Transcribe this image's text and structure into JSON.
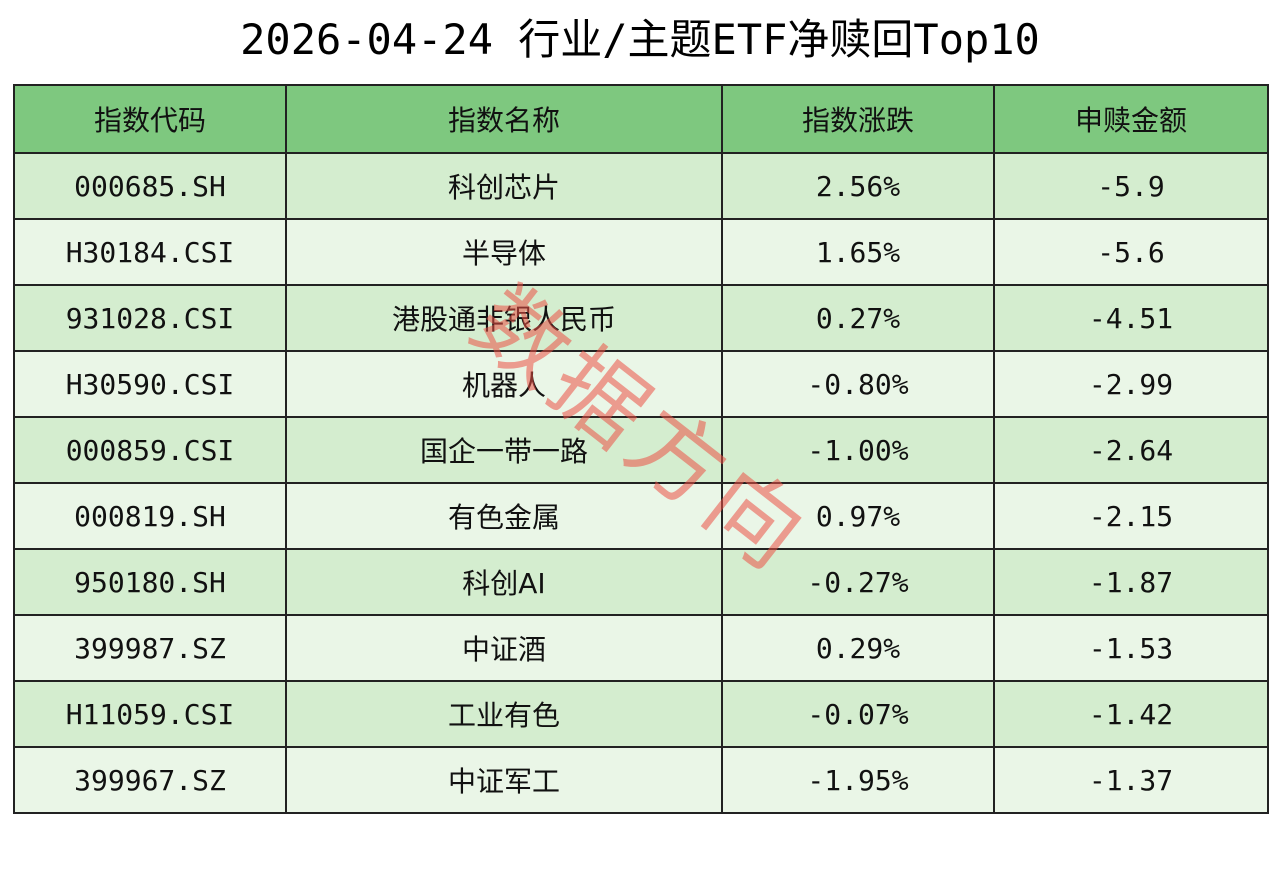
{
  "title": "2026-04-24 行业/主题ETF净赎回Top10",
  "table": {
    "headers": [
      "指数代码",
      "指数名称",
      "指数涨跌",
      "申赎金额"
    ],
    "rows": [
      {
        "code": "000685.SH",
        "name": "科创芯片",
        "change": "2.56%",
        "amount": "-5.9"
      },
      {
        "code": "H30184.CSI",
        "name": "半导体",
        "change": "1.65%",
        "amount": "-5.6"
      },
      {
        "code": "931028.CSI",
        "name": "港股通非银人民币",
        "change": "0.27%",
        "amount": "-4.51"
      },
      {
        "code": "H30590.CSI",
        "name": "机器人",
        "change": "-0.80%",
        "amount": "-2.99"
      },
      {
        "code": "000859.CSI",
        "name": "国企一带一路",
        "change": "-1.00%",
        "amount": "-2.64"
      },
      {
        "code": "000819.SH",
        "name": "有色金属",
        "change": "0.97%",
        "amount": "-2.15"
      },
      {
        "code": "950180.SH",
        "name": "科创AI",
        "change": "-0.27%",
        "amount": "-1.87"
      },
      {
        "code": "399987.SZ",
        "name": "中证酒",
        "change": "0.29%",
        "amount": "-1.53"
      },
      {
        "code": "H11059.CSI",
        "name": "工业有色",
        "change": "-0.07%",
        "amount": "-1.42"
      },
      {
        "code": "399967.SZ",
        "name": "中证军工",
        "change": "-1.95%",
        "amount": "-1.37"
      }
    ]
  },
  "watermark": "数据方向",
  "colors": {
    "header_bg": "#7ec87f",
    "row_odd_bg": "#d4edcf",
    "row_even_bg": "#eaf6e7",
    "watermark": "#eb5046"
  }
}
